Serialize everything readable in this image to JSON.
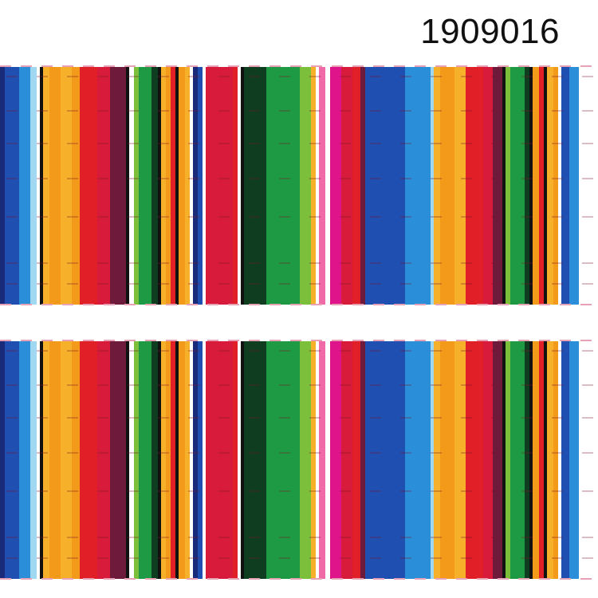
{
  "product": {
    "code": "1909016"
  },
  "pattern": {
    "name": "serape-stripe",
    "colors": {
      "royal-blue": "#1f4fb0",
      "sky-blue": "#2a8fd8",
      "light-blue": "#9fd8f0",
      "white": "#ffffff",
      "orange": "#f39a1a",
      "amber": "#f7b02a",
      "red": "#e02026",
      "crimson": "#d81b3a",
      "maroon": "#6e1a3a",
      "dark-green": "#0f3d1f",
      "green": "#1e9a44",
      "lime": "#7bbf3a",
      "pink": "#f06aa8",
      "magenta": "#e0148a",
      "black": "#111111",
      "navy": "#1a2a7a"
    }
  }
}
